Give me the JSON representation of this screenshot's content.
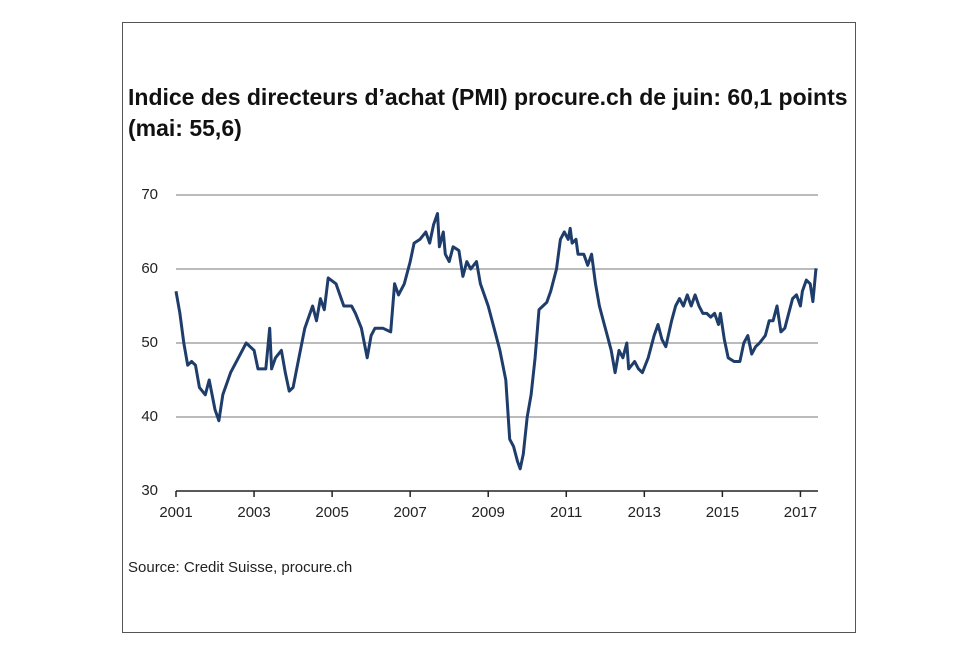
{
  "chart_data": {
    "type": "line",
    "title": "Indice des directeurs d’achat (PMI) procure.ch de juin: 60,1 points (mai: 55,6)",
    "source": "Source: Credit Suisse, procure.ch",
    "x": [
      2001.0,
      2001.1,
      2001.2,
      2001.3,
      2001.4,
      2001.5,
      2001.6,
      2001.75,
      2001.85,
      2002.0,
      2002.1,
      2002.2,
      2002.4,
      2002.6,
      2002.8,
      2003.0,
      2003.1,
      2003.3,
      2003.4,
      2003.45,
      2003.55,
      2003.7,
      2003.8,
      2003.9,
      2004.0,
      2004.15,
      2004.3,
      2004.5,
      2004.6,
      2004.7,
      2004.8,
      2004.9,
      2005.1,
      2005.3,
      2005.5,
      2005.6,
      2005.75,
      2005.9,
      2006.0,
      2006.1,
      2006.3,
      2006.5,
      2006.6,
      2006.7,
      2006.85,
      2007.0,
      2007.1,
      2007.25,
      2007.4,
      2007.5,
      2007.6,
      2007.7,
      2007.75,
      2007.85,
      2007.9,
      2008.0,
      2008.1,
      2008.25,
      2008.35,
      2008.45,
      2008.55,
      2008.7,
      2008.8,
      2009.0,
      2009.15,
      2009.3,
      2009.45,
      2009.55,
      2009.65,
      2009.75,
      2009.82,
      2009.9,
      2010.0,
      2010.1,
      2010.2,
      2010.3,
      2010.4,
      2010.5,
      2010.6,
      2010.75,
      2010.85,
      2010.95,
      2011.05,
      2011.1,
      2011.15,
      2011.25,
      2011.3,
      2011.45,
      2011.55,
      2011.65,
      2011.75,
      2011.85,
      2011.95,
      2012.05,
      2012.15,
      2012.25,
      2012.35,
      2012.45,
      2012.55,
      2012.6,
      2012.75,
      2012.85,
      2012.95,
      2013.1,
      2013.25,
      2013.35,
      2013.45,
      2013.55,
      2013.7,
      2013.8,
      2013.9,
      2014.0,
      2014.1,
      2014.2,
      2014.3,
      2014.4,
      2014.5,
      2014.6,
      2014.7,
      2014.8,
      2014.9,
      2014.95,
      2015.05,
      2015.15,
      2015.3,
      2015.45,
      2015.55,
      2015.65,
      2015.75,
      2015.85,
      2015.95,
      2016.1,
      2016.2,
      2016.3,
      2016.4,
      2016.5,
      2016.6,
      2016.7,
      2016.8,
      2016.9,
      2017.0,
      2017.05,
      2017.15,
      2017.25,
      2017.32,
      2017.4
    ],
    "series": [
      {
        "name": "PMI",
        "color": "#1f3d6b",
        "values": [
          57,
          54,
          50,
          47,
          47.5,
          47,
          44,
          43,
          45,
          41,
          39.5,
          43,
          46,
          48,
          50,
          49,
          46.5,
          46.5,
          52,
          46.5,
          48,
          49,
          46,
          43.5,
          44,
          48,
          52,
          55,
          53,
          56,
          54.5,
          58.8,
          58,
          55,
          55,
          54,
          52,
          48,
          51,
          52,
          52,
          51.5,
          58,
          56.5,
          58,
          61,
          63.5,
          64,
          65,
          63.5,
          66,
          67.5,
          63,
          65,
          62,
          61,
          63,
          62.5,
          59,
          61,
          60,
          61,
          58,
          55,
          52,
          49,
          45,
          37,
          36,
          34,
          33,
          35,
          40,
          43,
          48,
          54.5,
          55,
          55.5,
          57,
          60,
          64,
          65,
          64,
          65.5,
          63.5,
          64,
          62,
          62,
          60.5,
          62,
          58,
          55,
          53,
          51,
          49,
          46,
          49,
          48,
          50,
          46.5,
          47.5,
          46.5,
          46,
          48,
          51,
          52.5,
          50.5,
          49.5,
          53,
          55,
          56,
          55,
          56.5,
          55,
          56.5,
          55,
          54,
          54,
          53.5,
          54,
          52.5,
          54,
          50.5,
          48,
          47.5,
          47.5,
          50,
          51,
          48.5,
          49.5,
          50,
          51,
          53,
          53,
          55,
          51.5,
          52,
          54,
          56,
          56.5,
          55,
          57,
          58.5,
          58,
          55.6,
          60.1
        ]
      }
    ],
    "xlim": [
      2001,
      2017.45
    ],
    "xticks": [
      2001,
      2003,
      2005,
      2007,
      2009,
      2011,
      2013,
      2015,
      2017
    ],
    "ylim": [
      30,
      70
    ],
    "yticks": [
      30,
      40,
      50,
      60,
      70
    ],
    "grid": true
  }
}
